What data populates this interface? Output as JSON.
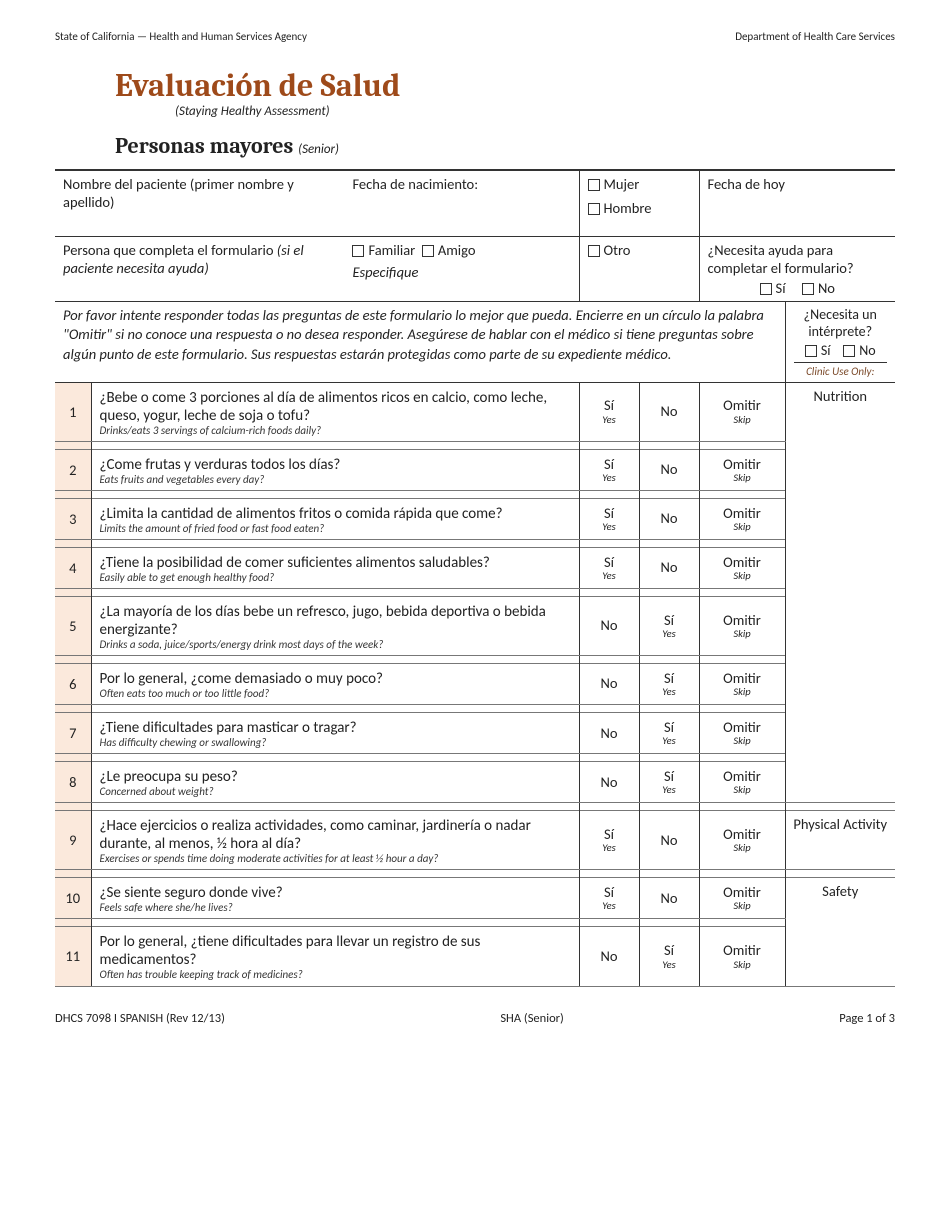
{
  "header": {
    "left": "State of California — Health and Human Services Agency",
    "right": "Department of Health Care Services"
  },
  "title": {
    "main": "Evaluación de Salud",
    "sub": "(Staying Healthy Assessment)",
    "age": "Personas mayores",
    "age_sub": "(Senior)"
  },
  "fields": {
    "name_label": "Nombre del paciente (primer nombre y apellido)",
    "dob_label": "Fecha de nacimiento:",
    "female": "Mujer",
    "male": "Hombre",
    "today_label": "Fecha de hoy",
    "filler_label": "Persona que completa el formulario ",
    "filler_paren": "(si el paciente necesita ayuda)",
    "familiar": "Familiar",
    "amigo": "Amigo",
    "otro": "Otro",
    "especifique": "Especifique",
    "need_help": "¿Necesita ayuda para completar el formulario?",
    "si": "Sí",
    "no": "No",
    "interp": "¿Necesita un intérprete?",
    "clinic": "Clinic Use Only:"
  },
  "instructions": "Por favor intente responder todas las  preguntas de este formulario lo mejor que pueda. Encierre en un círculo la palabra \"Omitir\" si no conoce una respuesta o no desea responder. Asegúrese de hablar con el médico si tiene preguntas sobre algún punto de este formulario. Sus respuestas estarán protegidas como parte de su expediente médico.",
  "ans": {
    "si": "Sí",
    "si_en": "Yes",
    "no": "No",
    "omit": "Omitir",
    "omit_en": "Skip"
  },
  "categories": {
    "nutrition": "Nutrition",
    "physical": "Physical Activity",
    "safety": "Safety"
  },
  "questions": [
    {
      "n": "1",
      "es": "¿Bebe o come 3 porciones al día de alimentos ricos en calcio, como leche, queso, yogur, leche de soja o tofu?",
      "en": "Drinks/eats 3 servings of calcium-rich foods daily?",
      "order": "pos"
    },
    {
      "n": "2",
      "es": "¿Come frutas y verduras todos los días?",
      "en": "Eats fruits and vegetables every day?",
      "order": "pos"
    },
    {
      "n": "3",
      "es": "¿Limita la cantidad de alimentos fritos o comida rápida que come?",
      "en": "Limits the amount of fried food or fast food eaten?",
      "order": "pos"
    },
    {
      "n": "4",
      "es": "¿Tiene la posibilidad de comer suficientes alimentos saludables?",
      "en": "Easily able to get enough healthy food?",
      "order": "pos"
    },
    {
      "n": "5",
      "es": "¿La mayoría de los días bebe un refresco, jugo, bebida deportiva o bebida energizante?",
      "en": "Drinks a soda, juice/sports/energy drink most days of the week?",
      "order": "neg"
    },
    {
      "n": "6",
      "es": "Por lo general, ¿come demasiado o muy poco?",
      "en": "Often eats too much or too little food?",
      "order": "neg"
    },
    {
      "n": "7",
      "es": "¿Tiene dificultades para masticar o tragar?",
      "en": "Has difficulty chewing or swallowing?",
      "order": "neg"
    },
    {
      "n": "8",
      "es": "¿Le preocupa su peso?",
      "en": "Concerned about weight?",
      "order": "neg"
    },
    {
      "n": "9",
      "es": "¿Hace ejercicios o realiza actividades, como caminar, jardinería o nadar durante, al menos, ½ hora al día?",
      "en": "Exercises or spends time doing moderate activities for at least ½ hour a day?",
      "order": "pos"
    },
    {
      "n": "10",
      "es": "¿Se siente seguro donde vive?",
      "en": "Feels safe where she/he lives?",
      "order": "pos"
    },
    {
      "n": "11",
      "es": "Por lo general, ¿tiene dificultades para llevar un registro de sus medicamentos?",
      "en": "Often has trouble keeping track of medicines?",
      "order": "neg"
    }
  ],
  "footer": {
    "left": "DHCS 7098 I SPANISH (Rev 12/13)",
    "center": "SHA (Senior)",
    "right": "Page 1 of 3"
  },
  "colors": {
    "title": "#9e4a1a",
    "num_bg": "#fbe9dc"
  }
}
